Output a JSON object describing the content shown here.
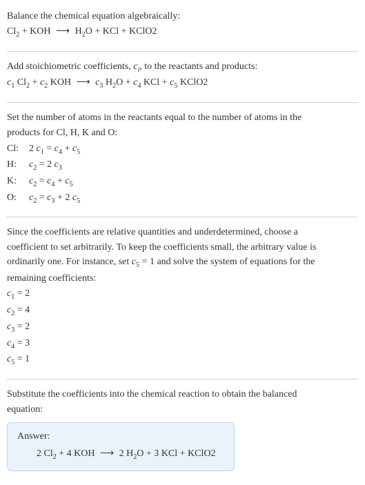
{
  "section1": {
    "intro": "Balance the chemical equation algebraically:",
    "eq": {
      "lhs1": "Cl",
      "lhs1_sub": "2",
      "plus1": " + KOH ",
      "arrow": "⟶",
      "rhs": " H",
      "rhs_h2o_sub": "2",
      "rhs_h2o_tail": "O + KCl + KClO2"
    }
  },
  "section2": {
    "intro_a": "Add stoichiometric coefficients, ",
    "ci": "c",
    "ci_sub": "i",
    "intro_b": ", to the reactants and products:",
    "eq": {
      "c1": "c",
      "c1_sub": "1",
      "sp1": " Cl",
      "cl_sub": "2",
      "plus1": " + ",
      "c2": "c",
      "c2_sub": "2",
      "sp2": " KOH ",
      "arrow": "⟶ ",
      "c3": "c",
      "c3_sub": "3",
      "sp3": " H",
      "h_sub": "2",
      "sp3b": "O + ",
      "c4": "c",
      "c4_sub": "4",
      "sp4": " KCl + ",
      "c5": "c",
      "c5_sub": "5",
      "sp5": " KClO2"
    }
  },
  "section3": {
    "intro1": "Set the number of atoms in the reactants equal to the number of atoms in the",
    "intro2": "products for Cl, H, K and O:",
    "rows": [
      {
        "label": "Cl:",
        "eq_a": "2 ",
        "c1": "c",
        "c1s": "1",
        "mid": " = ",
        "c2": "c",
        "c2s": "4",
        "plus": " + ",
        "c3": "c",
        "c3s": "5"
      },
      {
        "label": "H:",
        "eq_a": "",
        "c1": "c",
        "c1s": "2",
        "mid": " = 2 ",
        "c2": "c",
        "c2s": "3",
        "plus": "",
        "c3": "",
        "c3s": ""
      },
      {
        "label": "K:",
        "eq_a": "",
        "c1": "c",
        "c1s": "2",
        "mid": " = ",
        "c2": "c",
        "c2s": "4",
        "plus": " + ",
        "c3": "c",
        "c3s": "5"
      },
      {
        "label": "O:",
        "eq_a": "",
        "c1": "c",
        "c1s": "2",
        "mid": " = ",
        "c2": "c",
        "c2s": "3",
        "plus": " + 2 ",
        "c3": "c",
        "c3s": "5"
      }
    ]
  },
  "section4": {
    "p1": "Since the coefficients are relative quantities and underdetermined, choose a",
    "p2": "coefficient to set arbitrarily. To keep the coefficients small, the arbitrary value is",
    "p3a": "ordinarily one. For instance, set ",
    "p3_c": "c",
    "p3_cs": "5",
    "p3_eq": " = 1 and solve the system of equations for the",
    "p4": "remaining coefficients:",
    "assigns": [
      {
        "c": "c",
        "s": "1",
        "v": " = 2"
      },
      {
        "c": "c",
        "s": "2",
        "v": " = 4"
      },
      {
        "c": "c",
        "s": "3",
        "v": " = 2"
      },
      {
        "c": "c",
        "s": "4",
        "v": " = 3"
      },
      {
        "c": "c",
        "s": "5",
        "v": " = 1"
      }
    ]
  },
  "section5": {
    "p1": "Substitute the coefficients into the chemical reaction to obtain the balanced",
    "p2": "equation:",
    "answer_label": "Answer:",
    "answer": {
      "a1": "2 Cl",
      "cl_sub": "2",
      "a2": " + 4 KOH ",
      "arrow": "⟶",
      "a3": " 2 H",
      "h_sub": "2",
      "a4": "O + 3 KCl + KClO2"
    }
  },
  "colors": {
    "text": "#333333",
    "rule": "#d0d0d0",
    "answer_bg": "#eaf3fb",
    "answer_border": "#b9d4ea"
  }
}
